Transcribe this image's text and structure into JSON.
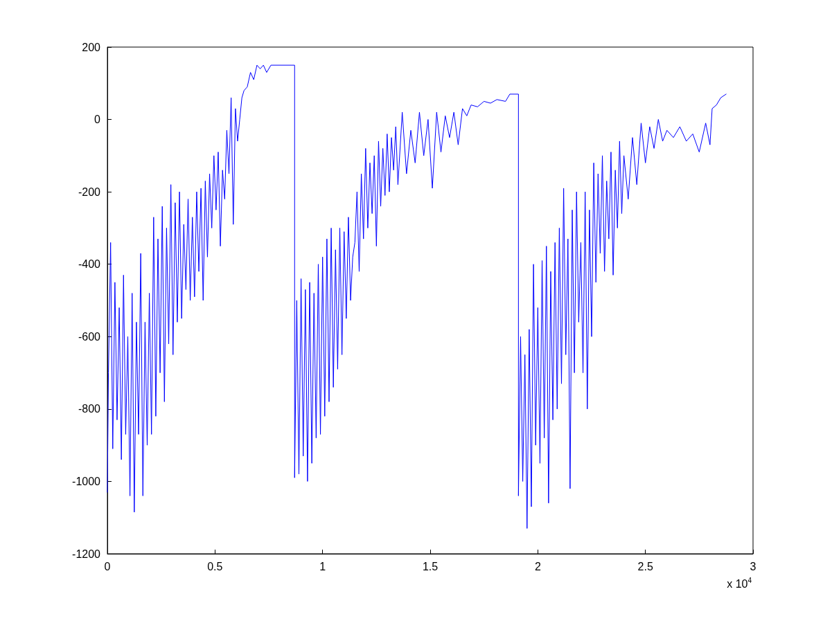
{
  "chart_data": {
    "type": "line",
    "color": "#0000ff",
    "marker": "none",
    "line_style": "solid",
    "grid": false,
    "xlim": [
      0,
      3
    ],
    "ylim": [
      -1200,
      200
    ],
    "xticks": [
      0,
      0.5,
      1,
      1.5,
      2,
      2.5,
      3
    ],
    "yticks": [
      -1200,
      -1000,
      -800,
      -600,
      -400,
      -200,
      0,
      200
    ],
    "annotations": [
      "x 10$^{4}$"
    ],
    "x": [
      0,
      0.005,
      0.015,
      0.025,
      0.035,
      0.045,
      0.055,
      0.065,
      0.075,
      0.085,
      0.095,
      0.105,
      0.115,
      0.125,
      0.135,
      0.145,
      0.155,
      0.165,
      0.175,
      0.185,
      0.195,
      0.205,
      0.215,
      0.225,
      0.235,
      0.245,
      0.255,
      0.265,
      0.275,
      0.285,
      0.295,
      0.305,
      0.315,
      0.325,
      0.335,
      0.345,
      0.355,
      0.365,
      0.375,
      0.385,
      0.395,
      0.405,
      0.415,
      0.425,
      0.435,
      0.445,
      0.455,
      0.465,
      0.475,
      0.485,
      0.495,
      0.505,
      0.515,
      0.525,
      0.535,
      0.545,
      0.555,
      0.565,
      0.575,
      0.585,
      0.595,
      0.605,
      0.615,
      0.625,
      0.635,
      0.65,
      0.665,
      0.68,
      0.695,
      0.71,
      0.725,
      0.74,
      0.76,
      0.87,
      0.87,
      0.88,
      0.89,
      0.9,
      0.91,
      0.92,
      0.93,
      0.94,
      0.95,
      0.96,
      0.97,
      0.98,
      0.99,
      1,
      1.01,
      1.02,
      1.03,
      1.04,
      1.05,
      1.06,
      1.07,
      1.08,
      1.09,
      1.1,
      1.11,
      1.12,
      1.13,
      1.14,
      1.15,
      1.16,
      1.17,
      1.18,
      1.19,
      1.2,
      1.21,
      1.22,
      1.23,
      1.24,
      1.25,
      1.26,
      1.27,
      1.28,
      1.29,
      1.3,
      1.31,
      1.32,
      1.33,
      1.34,
      1.35,
      1.37,
      1.39,
      1.41,
      1.43,
      1.45,
      1.47,
      1.49,
      1.51,
      1.53,
      1.55,
      1.57,
      1.59,
      1.61,
      1.63,
      1.65,
      1.67,
      1.69,
      1.72,
      1.75,
      1.78,
      1.81,
      1.85,
      1.87,
      1.91,
      1.91,
      1.92,
      1.93,
      1.94,
      1.95,
      1.96,
      1.97,
      1.98,
      1.99,
      2,
      2.01,
      2.02,
      2.03,
      2.04,
      2.05,
      2.06,
      2.07,
      2.08,
      2.09,
      2.1,
      2.11,
      2.12,
      2.13,
      2.14,
      2.15,
      2.16,
      2.17,
      2.18,
      2.19,
      2.2,
      2.21,
      2.22,
      2.23,
      2.24,
      2.25,
      2.26,
      2.27,
      2.28,
      2.29,
      2.3,
      2.31,
      2.32,
      2.33,
      2.34,
      2.35,
      2.36,
      2.37,
      2.38,
      2.39,
      2.4,
      2.42,
      2.44,
      2.46,
      2.48,
      2.5,
      2.52,
      2.54,
      2.56,
      2.58,
      2.6,
      2.63,
      2.66,
      2.69,
      2.72,
      2.75,
      2.78,
      2.8,
      2.81,
      2.83,
      2.85,
      2.875
    ],
    "values": [
      -1030,
      -700,
      -340,
      -910,
      -450,
      -830,
      -520,
      -940,
      -430,
      -870,
      -600,
      -1040,
      -480,
      -1085,
      -560,
      -870,
      -370,
      -1040,
      -560,
      -900,
      -480,
      -870,
      -270,
      -820,
      -330,
      -700,
      -240,
      -780,
      -300,
      -620,
      -180,
      -650,
      -230,
      -560,
      -200,
      -550,
      -290,
      -470,
      -220,
      -500,
      -270,
      -490,
      -200,
      -420,
      -190,
      -500,
      -170,
      -380,
      -150,
      -300,
      -100,
      -250,
      -90,
      -350,
      -140,
      -220,
      -30,
      -150,
      60,
      -290,
      30,
      -60,
      0,
      60,
      80,
      90,
      130,
      110,
      150,
      140,
      150,
      130,
      150,
      150,
      -990,
      -500,
      -980,
      -440,
      -930,
      -470,
      -1000,
      -450,
      -950,
      -480,
      -880,
      -400,
      -870,
      -380,
      -820,
      -330,
      -780,
      -300,
      -740,
      -360,
      -690,
      -300,
      -650,
      -310,
      -550,
      -270,
      -500,
      -380,
      -340,
      -200,
      -420,
      -150,
      -330,
      -80,
      -300,
      -120,
      -260,
      -100,
      -350,
      -60,
      -240,
      -80,
      -210,
      -40,
      -200,
      -50,
      -140,
      -20,
      -180,
      20,
      -150,
      -30,
      -120,
      20,
      -100,
      0,
      -190,
      20,
      -90,
      10,
      -50,
      20,
      -70,
      30,
      10,
      40,
      35,
      50,
      45,
      55,
      50,
      70,
      70,
      -1040,
      -600,
      -1000,
      -650,
      -1130,
      -580,
      -1070,
      -400,
      -900,
      -520,
      -950,
      -390,
      -880,
      -350,
      -1060,
      -420,
      -830,
      -340,
      -800,
      -300,
      -730,
      -190,
      -650,
      -330,
      -1020,
      -250,
      -700,
      -200,
      -560,
      -340,
      -700,
      -200,
      -800,
      -250,
      -600,
      -120,
      -450,
      -150,
      -370,
      -100,
      -420,
      -170,
      -330,
      -90,
      -430,
      -140,
      -300,
      -60,
      -260,
      -100,
      -220,
      -50,
      -180,
      -10,
      -120,
      -20,
      -80,
      0,
      -60,
      -30,
      -50,
      -20,
      -60,
      -40,
      -90,
      -10,
      -70,
      30,
      40,
      60,
      70
    ]
  }
}
